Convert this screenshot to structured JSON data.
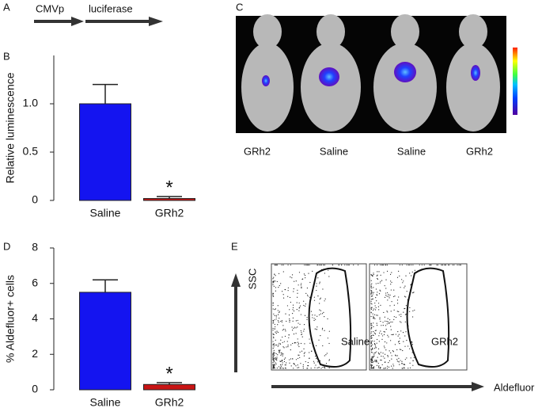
{
  "panel_labels": [
    "A",
    "B",
    "C",
    "D",
    "E"
  ],
  "construct": {
    "labels": [
      "CMVp",
      "luciferase"
    ]
  },
  "imaging": {
    "labels": [
      "GRh2",
      "Saline",
      "Saline",
      "GRh2"
    ]
  },
  "flow": {
    "y_label": "SSC",
    "x_label": "Aldefluor",
    "gates": [
      "Saline",
      "GRh2"
    ]
  },
  "chart_data": [
    {
      "type": "bar",
      "y_label": "Relative luminescence",
      "categories": [
        "Saline",
        "GRh2"
      ],
      "values": [
        1.0,
        0.02
      ],
      "errors": [
        0.2,
        0.02
      ],
      "colors": [
        "#1414f0",
        "#c81414"
      ],
      "ylim": [
        0,
        1.5
      ],
      "yticks": [
        0,
        0.5,
        {
          "value": 1.0,
          "label": "1.0"
        }
      ],
      "annotation": "*"
    },
    {
      "type": "bar",
      "y_label": "% Aldefluor+ cells",
      "categories": [
        "Saline",
        "GRh2"
      ],
      "values": [
        5.5,
        0.3
      ],
      "errors": [
        0.7,
        0.1
      ],
      "colors": [
        "#1414f0",
        "#c81414"
      ],
      "ylim": [
        0,
        8
      ],
      "yticks": [
        0,
        2,
        4,
        6,
        8
      ],
      "annotation": "*"
    }
  ]
}
